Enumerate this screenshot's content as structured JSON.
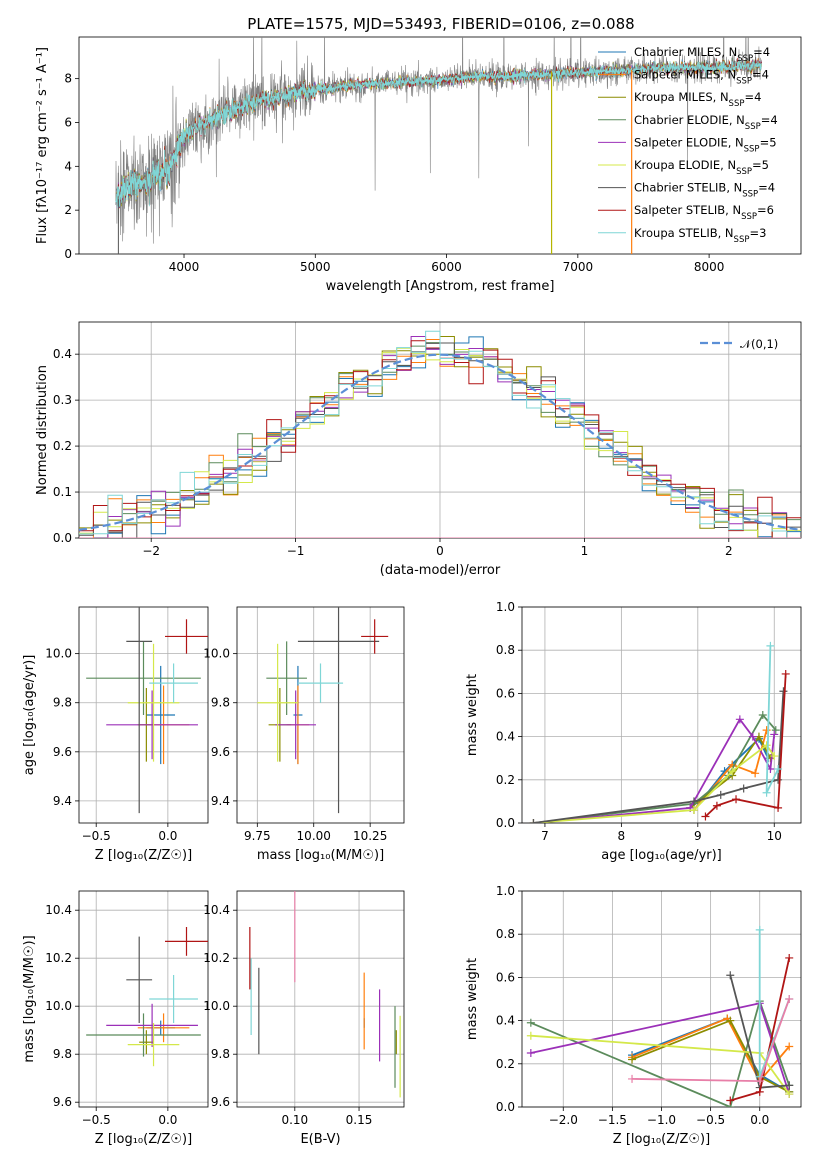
{
  "figure_title": "PLATE=1575, MJD=53493, FIBERID=0106, z=0.088",
  "models": [
    {
      "name": "Chabrier MILES",
      "n": 4,
      "color": "#1f77b4"
    },
    {
      "name": "Salpeter MILES",
      "n": 4,
      "color": "#ff7f0e"
    },
    {
      "name": "Kroupa MILES",
      "n": 4,
      "color": "#8c8c00"
    },
    {
      "name": "Chabrier ELODIE",
      "n": 4,
      "color": "#5b8b5b"
    },
    {
      "name": "Salpeter ELODIE",
      "n": 5,
      "color": "#9b30b8"
    },
    {
      "name": "Kroupa ELODIE",
      "n": 5,
      "color": "#d4e84a"
    },
    {
      "name": "Chabrier STELIB",
      "n": 4,
      "color": "#555555"
    },
    {
      "name": "Salpeter STELIB",
      "n": 6,
      "color": "#b01515"
    },
    {
      "name": "Kroupa STELIB",
      "n": 3,
      "color": "#7fd6d6"
    }
  ],
  "chart_data": [
    {
      "type": "line",
      "id": "spectrum",
      "title": "PLATE=1575, MJD=53493, FIBERID=0106, z=0.088",
      "xlabel": "wavelength [Angstrom, rest frame]",
      "ylabel": "Flux [fλ10⁻¹⁷ erg cm⁻² s⁻¹ A⁻¹]",
      "xlim": [
        3200,
        8700
      ],
      "ylim": [
        0,
        9.9
      ],
      "xticks": [
        4000,
        5000,
        6000,
        7000,
        8000
      ],
      "yticks": [
        0,
        2,
        4,
        6,
        8
      ],
      "grid": false,
      "legend": "upper right",
      "data_color": "#808080",
      "continuum": {
        "x": [
          3480,
          3550,
          3700,
          3800,
          3900,
          3950,
          4000,
          4200,
          4500,
          4800,
          5000,
          5300,
          5600,
          5900,
          6200,
          6500,
          6800,
          7100,
          7400,
          7700,
          8000,
          8400
        ],
        "y": [
          2.6,
          3.0,
          3.3,
          3.6,
          3.9,
          4.7,
          5.4,
          6.1,
          6.9,
          7.3,
          7.5,
          7.7,
          7.8,
          7.9,
          8.1,
          8.1,
          8.2,
          8.3,
          8.4,
          8.5,
          8.5,
          8.6
        ]
      }
    },
    {
      "type": "line",
      "id": "residuals",
      "xlabel": "(data-model)/error",
      "ylabel": "Normed distribution",
      "xlim": [
        -2.5,
        2.5
      ],
      "ylim": [
        0,
        0.47
      ],
      "xticks": [
        -2,
        -1,
        0,
        1,
        2
      ],
      "yticks": [
        0.0,
        0.1,
        0.2,
        0.3,
        0.4
      ],
      "grid": true,
      "legend": "upper right",
      "reference": {
        "name": "𝒩(0,1)",
        "color": "#5b8fd6",
        "mean": 0,
        "sigma": 1
      },
      "bin_width": 0.1
    },
    {
      "type": "scatter",
      "id": "age-vs-Z",
      "xlabel": "Z [log₁₀(Z/Z☉)]",
      "ylabel": "age  [log₁₀(age/yr)]",
      "xlim": [
        -0.62,
        0.28
      ],
      "ylim": [
        9.31,
        10.19
      ],
      "xticks": [
        -0.5,
        0.0
      ],
      "yticks": [
        9.4,
        9.6,
        9.8,
        10.0
      ],
      "grid": true,
      "points": [
        {
          "model": 0,
          "x": -0.05,
          "y": 9.75,
          "xerr": 0.1,
          "yerr": 0.2
        },
        {
          "model": 1,
          "x": -0.03,
          "y": 9.71,
          "xerr": 0.18,
          "yerr": 0.16
        },
        {
          "model": 2,
          "x": -0.15,
          "y": 9.71,
          "xerr": 0.05,
          "yerr": 0.15
        },
        {
          "model": 3,
          "x": -0.17,
          "y": 9.9,
          "xerr": 0.4,
          "yerr": 0.15
        },
        {
          "model": 4,
          "x": -0.11,
          "y": 9.71,
          "xerr": 0.32,
          "yerr": 0.14
        },
        {
          "model": 5,
          "x": -0.1,
          "y": 9.8,
          "xerr": 0.18,
          "yerr": 0.24
        },
        {
          "model": 6,
          "x": -0.2,
          "y": 10.05,
          "xerr": 0.09,
          "yerr": 0.7
        },
        {
          "model": 7,
          "x": 0.13,
          "y": 10.07,
          "xerr": 0.15,
          "yerr": 0.07
        },
        {
          "model": 8,
          "x": 0.04,
          "y": 9.88,
          "xerr": 0.17,
          "yerr": 0.08
        }
      ]
    },
    {
      "type": "scatter",
      "id": "age-vs-mass",
      "xlabel": "mass [log₁₀(M/M☉)]",
      "ylabel": "",
      "xlim": [
        9.66,
        10.4
      ],
      "ylim": [
        9.31,
        10.19
      ],
      "xticks": [
        9.75,
        10.0,
        10.25
      ],
      "yticks": [
        9.4,
        9.6,
        9.8,
        10.0
      ],
      "grid": true,
      "points": [
        {
          "model": 0,
          "x": 9.93,
          "y": 9.75,
          "xerr": 0.02,
          "yerr": 0.2
        },
        {
          "model": 1,
          "x": 9.93,
          "y": 9.71,
          "xerr": 0.05,
          "yerr": 0.16
        },
        {
          "model": 2,
          "x": 9.85,
          "y": 9.71,
          "xerr": 0.05,
          "yerr": 0.15
        },
        {
          "model": 3,
          "x": 9.88,
          "y": 9.9,
          "xerr": 0.09,
          "yerr": 0.15
        },
        {
          "model": 4,
          "x": 9.92,
          "y": 9.71,
          "xerr": 0.09,
          "yerr": 0.14
        },
        {
          "model": 5,
          "x": 9.84,
          "y": 9.8,
          "xerr": 0.09,
          "yerr": 0.24
        },
        {
          "model": 6,
          "x": 10.11,
          "y": 10.05,
          "xerr": 0.18,
          "yerr": 0.7
        },
        {
          "model": 7,
          "x": 10.27,
          "y": 10.07,
          "xerr": 0.06,
          "yerr": 0.07
        },
        {
          "model": 8,
          "x": 10.03,
          "y": 9.88,
          "xerr": 0.1,
          "yerr": 0.08
        }
      ]
    },
    {
      "type": "line",
      "id": "massweight-vs-age",
      "xlabel": "age  [log₁₀(age/yr)]",
      "ylabel": "mass weight",
      "xlim": [
        6.7,
        10.35
      ],
      "ylim": [
        0,
        1.0
      ],
      "xticks": [
        7,
        8,
        9,
        10
      ],
      "yticks": [
        0.0,
        0.2,
        0.4,
        0.6,
        0.8,
        1.0
      ],
      "grid": true,
      "series": [
        {
          "model": 0,
          "x": [
            8.95,
            9.35,
            9.8,
            9.92
          ],
          "y": [
            0.06,
            0.24,
            0.39,
            0.3
          ]
        },
        {
          "model": 1,
          "x": [
            8.95,
            9.45,
            9.75,
            9.9
          ],
          "y": [
            0.06,
            0.27,
            0.23,
            0.43
          ]
        },
        {
          "model": 2,
          "x": [
            8.9,
            9.45,
            9.8,
            9.95
          ],
          "y": [
            0.07,
            0.22,
            0.4,
            0.3
          ]
        },
        {
          "model": 3,
          "x": [
            6.85,
            8.95,
            9.4,
            9.85,
            10.02
          ],
          "y": [
            0.0,
            0.09,
            0.22,
            0.5,
            0.43
          ]
        },
        {
          "model": 4,
          "x": [
            6.85,
            8.9,
            9.55,
            9.72,
            9.95,
            10.0
          ],
          "y": [
            0.0,
            0.07,
            0.48,
            0.4,
            0.25,
            0.41
          ]
        },
        {
          "model": 5,
          "x": [
            6.85,
            8.95,
            9.45,
            9.9,
            10.0
          ],
          "y": [
            0.0,
            0.06,
            0.24,
            0.36,
            0.31
          ]
        },
        {
          "model": 6,
          "x": [
            6.85,
            8.95,
            9.3,
            9.6,
            10.05,
            10.12
          ],
          "y": [
            0.0,
            0.1,
            0.13,
            0.16,
            0.2,
            0.61
          ]
        },
        {
          "model": 7,
          "x": [
            9.1,
            9.25,
            9.5,
            10.05,
            10.15
          ],
          "y": [
            0.03,
            0.08,
            0.11,
            0.07,
            0.69
          ]
        },
        {
          "model": 8,
          "x": [
            9.95,
            9.9,
            10.05
          ],
          "y": [
            0.82,
            0.14,
            0.25
          ]
        }
      ]
    },
    {
      "type": "scatter",
      "id": "mass-vs-Z",
      "xlabel": "Z [log₁₀(Z/Z☉)]",
      "ylabel": "mass [log₁₀(M/M☉)]",
      "xlim": [
        -0.62,
        0.28
      ],
      "ylim": [
        9.58,
        10.48
      ],
      "xticks": [
        -0.5,
        0.0
      ],
      "yticks": [
        9.6,
        9.8,
        10.0,
        10.2,
        10.4
      ],
      "grid": true,
      "points": [
        {
          "model": 0,
          "x": -0.05,
          "y": 9.91,
          "xerr": 0.1,
          "yerr": 0.03
        },
        {
          "model": 1,
          "x": -0.03,
          "y": 9.91,
          "xerr": 0.18,
          "yerr": 0.06
        },
        {
          "model": 2,
          "x": -0.15,
          "y": 9.85,
          "xerr": 0.05,
          "yerr": 0.05
        },
        {
          "model": 3,
          "x": -0.17,
          "y": 9.88,
          "xerr": 0.4,
          "yerr": 0.09
        },
        {
          "model": 4,
          "x": -0.11,
          "y": 9.92,
          "xerr": 0.32,
          "yerr": 0.09
        },
        {
          "model": 5,
          "x": -0.1,
          "y": 9.84,
          "xerr": 0.18,
          "yerr": 0.09
        },
        {
          "model": 6,
          "x": -0.2,
          "y": 10.11,
          "xerr": 0.09,
          "yerr": 0.18
        },
        {
          "model": 7,
          "x": 0.13,
          "y": 10.27,
          "xerr": 0.15,
          "yerr": 0.06
        },
        {
          "model": 8,
          "x": 0.04,
          "y": 10.03,
          "xerr": 0.17,
          "yerr": 0.1
        }
      ]
    },
    {
      "type": "scatter",
      "id": "mass-vs-EBV",
      "xlabel": "E(B-V)",
      "ylabel": "",
      "xlim": [
        0.055,
        0.185
      ],
      "ylim": [
        9.58,
        10.48
      ],
      "xticks": [
        0.1,
        0.15
      ],
      "yticks": [
        9.6,
        9.8,
        10.0,
        10.2,
        10.4
      ],
      "grid": true,
      "points": [
        {
          "model": 0,
          "x": 0.154,
          "y": 9.93,
          "xerr": 0,
          "yerr": 0.02
        },
        {
          "model": 1,
          "x": 0.154,
          "y": 9.98,
          "xerr": 0,
          "yerr": 0.16
        },
        {
          "model": 2,
          "x": 0.179,
          "y": 9.85,
          "xerr": 0,
          "yerr": 0.05
        },
        {
          "model": 3,
          "x": 0.178,
          "y": 9.83,
          "xerr": 0,
          "yerr": 0.17
        },
        {
          "model": 4,
          "x": 0.166,
          "y": 9.92,
          "xerr": 0,
          "yerr": 0.15
        },
        {
          "model": 5,
          "x": 0.182,
          "y": 9.79,
          "xerr": 0,
          "yerr": 0.17
        },
        {
          "model": 6,
          "x": 0.072,
          "y": 9.98,
          "xerr": 0,
          "yerr": 0.18
        },
        {
          "model": 7,
          "x": 0.065,
          "y": 10.2,
          "xerr": 0,
          "yerr": 0.13
        },
        {
          "model": 8,
          "x": 0.066,
          "y": 10.04,
          "xerr": 0,
          "yerr": 0.16
        },
        {
          "model": 1,
          "x": 0.1,
          "y": 10.29,
          "xerr": 0,
          "yerr": 0.19,
          "color_override": "#e87fa8"
        }
      ]
    },
    {
      "type": "line",
      "id": "massweight-vs-Z",
      "xlabel": "Z [log₁₀(Z/Z☉)]",
      "ylabel": "mass weight",
      "xlim": [
        -2.42,
        0.42
      ],
      "ylim": [
        0,
        1.0
      ],
      "xticks": [
        -2.0,
        -1.5,
        -1.0,
        -0.5,
        0.0
      ],
      "yticks": [
        0.0,
        0.2,
        0.4,
        0.6,
        0.8,
        1.0
      ],
      "grid": true,
      "series": [
        {
          "model": 0,
          "x": [
            -1.3,
            -0.33,
            0.0,
            0.3
          ],
          "y": [
            0.24,
            0.41,
            0.15,
            0.07
          ]
        },
        {
          "model": 1,
          "x": [
            -1.3,
            -0.33,
            0.0,
            0.3
          ],
          "y": [
            0.23,
            0.41,
            0.12,
            0.28
          ]
        },
        {
          "model": 2,
          "x": [
            -1.3,
            -0.3,
            0.0,
            0.3
          ],
          "y": [
            0.22,
            0.4,
            0.14,
            0.07
          ]
        },
        {
          "model": 3,
          "x": [
            -2.33,
            -0.3,
            0.0,
            0.3
          ],
          "y": [
            0.39,
            0.0,
            0.49,
            0.1
          ]
        },
        {
          "model": 4,
          "x": [
            -2.33,
            0.0,
            0.3
          ],
          "y": [
            0.25,
            0.48,
            0.06
          ]
        },
        {
          "model": 5,
          "x": [
            -2.33,
            0.0,
            0.3
          ],
          "y": [
            0.33,
            0.25,
            0.06
          ]
        },
        {
          "model": 6,
          "x": [
            -0.3,
            0.0,
            0.3
          ],
          "y": [
            0.61,
            0.09,
            0.1
          ]
        },
        {
          "model": 7,
          "x": [
            -0.3,
            0.0,
            0.3
          ],
          "y": [
            0.03,
            0.07,
            0.69
          ]
        },
        {
          "model": 8,
          "x": [
            0.0,
            0.0,
            0.3
          ],
          "y": [
            0.82,
            0.14,
            0.5
          ]
        },
        {
          "model": 1,
          "x": [
            -1.3,
            0.0,
            0.3
          ],
          "y": [
            0.13,
            0.12,
            0.5
          ],
          "color_override": "#e87fa8"
        }
      ]
    }
  ]
}
